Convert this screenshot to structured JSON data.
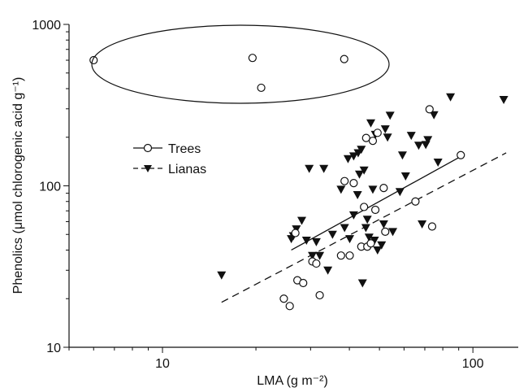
{
  "chart_data": {
    "type": "scatter",
    "x_scale": "log",
    "y_scale": "log",
    "xlim": [
      5,
      140
    ],
    "ylim": [
      10,
      1000
    ],
    "xlabel": "LMA (g m⁻²)",
    "ylabel": "Phenolics (μmol chlorogenic acid g⁻¹)",
    "x_ticks": [
      {
        "value": 10,
        "label": "10"
      },
      {
        "value": 100,
        "label": "100"
      }
    ],
    "y_ticks": [
      {
        "value": 10,
        "label": "10"
      },
      {
        "value": 100,
        "label": "100"
      },
      {
        "value": 1000,
        "label": "1000"
      }
    ],
    "grid": false,
    "legend_position": "middle-left",
    "series": [
      {
        "name": "Trees",
        "marker": "open-circle",
        "line_style": "solid",
        "points": [
          [
            6,
            600
          ],
          [
            19.5,
            620
          ],
          [
            20.8,
            405
          ],
          [
            38.5,
            610
          ],
          [
            24.6,
            20
          ],
          [
            25.7,
            18
          ],
          [
            26.8,
            51
          ],
          [
            27.2,
            26
          ],
          [
            28.4,
            25
          ],
          [
            30.4,
            34
          ],
          [
            31.3,
            33
          ],
          [
            32.1,
            21
          ],
          [
            37.6,
            37
          ],
          [
            38.6,
            107
          ],
          [
            40.1,
            37
          ],
          [
            41.3,
            104
          ],
          [
            43.7,
            42
          ],
          [
            44.6,
            74
          ],
          [
            45.3,
            198
          ],
          [
            45.7,
            42
          ],
          [
            46.9,
            44
          ],
          [
            47.6,
            190
          ],
          [
            48.5,
            71
          ],
          [
            49.3,
            213
          ],
          [
            51.6,
            97
          ],
          [
            52.2,
            52
          ],
          [
            65.3,
            80
          ],
          [
            72.5,
            298
          ],
          [
            73.9,
            56
          ],
          [
            91.4,
            155
          ]
        ],
        "fit": {
          "x": [
            26,
            92
          ],
          "y": [
            40,
            153
          ]
        }
      },
      {
        "name": "Lianas",
        "marker": "filled-triangle-down",
        "line_style": "dashed",
        "points": [
          [
            15.5,
            28
          ],
          [
            26,
            47
          ],
          [
            26.4,
            49
          ],
          [
            27,
            54
          ],
          [
            28.1,
            61
          ],
          [
            29.1,
            46
          ],
          [
            29.7,
            128
          ],
          [
            30.4,
            37
          ],
          [
            31.3,
            45
          ],
          [
            32.1,
            37
          ],
          [
            33.1,
            128
          ],
          [
            34.1,
            30
          ],
          [
            35.3,
            50
          ],
          [
            37.6,
            95
          ],
          [
            38.6,
            55
          ],
          [
            39.6,
            147
          ],
          [
            40.1,
            47
          ],
          [
            41.3,
            66
          ],
          [
            41.3,
            153
          ],
          [
            42.5,
            88
          ],
          [
            42.7,
            160
          ],
          [
            43.1,
            118
          ],
          [
            43.7,
            168
          ],
          [
            44.1,
            25
          ],
          [
            44.6,
            125
          ],
          [
            45.2,
            55
          ],
          [
            45.7,
            62
          ],
          [
            46.3,
            48
          ],
          [
            46.9,
            245
          ],
          [
            47.6,
            95
          ],
          [
            48.2,
            46
          ],
          [
            48.5,
            208
          ],
          [
            49.3,
            40
          ],
          [
            50.8,
            43
          ],
          [
            51.6,
            58
          ],
          [
            52.2,
            225
          ],
          [
            53.1,
            200
          ],
          [
            54.1,
            273
          ],
          [
            55.2,
            52
          ],
          [
            58.2,
            92
          ],
          [
            59.3,
            155
          ],
          [
            60.7,
            115
          ],
          [
            63.3,
            205
          ],
          [
            66.9,
            178
          ],
          [
            68.6,
            58
          ],
          [
            70.5,
            180
          ],
          [
            71.6,
            193
          ],
          [
            74.9,
            275
          ],
          [
            77.2,
            140
          ],
          [
            84.7,
            355
          ],
          [
            125.7,
            342
          ]
        ],
        "fit": {
          "x": [
            15.5,
            128
          ],
          "y": [
            19,
            160
          ]
        }
      }
    ]
  }
}
